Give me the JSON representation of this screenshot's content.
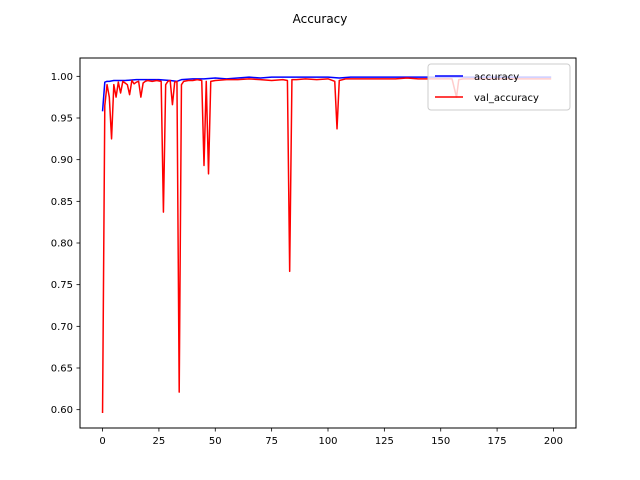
{
  "chart_data": {
    "type": "line",
    "title": "Accuracy",
    "xlabel": "",
    "ylabel": "",
    "xlim": [
      -10,
      210
    ],
    "ylim": [
      0.578,
      1.022
    ],
    "xticks": [
      0,
      25,
      50,
      75,
      100,
      125,
      150,
      175,
      200
    ],
    "yticks": [
      0.6,
      0.65,
      0.7,
      0.75,
      0.8,
      0.85,
      0.9,
      0.95,
      1.0
    ],
    "xtick_labels": [
      "0",
      "25",
      "50",
      "75",
      "100",
      "125",
      "150",
      "175",
      "200"
    ],
    "ytick_labels": [
      "0.60",
      "0.65",
      "0.70",
      "0.75",
      "0.80",
      "0.85",
      "0.90",
      "0.95",
      "1.00"
    ],
    "grid": false,
    "legend": "top-right",
    "series": [
      {
        "name": "accuracy",
        "color": "#0000ff",
        "points": [
          [
            0,
            0.958
          ],
          [
            1,
            0.993
          ],
          [
            2,
            0.994
          ],
          [
            3,
            0.994
          ],
          [
            5,
            0.995
          ],
          [
            10,
            0.995
          ],
          [
            15,
            0.996
          ],
          [
            20,
            0.996
          ],
          [
            25,
            0.996
          ],
          [
            30,
            0.995
          ],
          [
            33,
            0.994
          ],
          [
            35,
            0.996
          ],
          [
            40,
            0.997
          ],
          [
            45,
            0.997
          ],
          [
            50,
            0.998
          ],
          [
            55,
            0.997
          ],
          [
            60,
            0.998
          ],
          [
            65,
            0.999
          ],
          [
            70,
            0.998
          ],
          [
            75,
            0.999
          ],
          [
            80,
            0.999
          ],
          [
            85,
            0.999
          ],
          [
            90,
            0.999
          ],
          [
            95,
            0.999
          ],
          [
            100,
            0.999
          ],
          [
            105,
            0.998
          ],
          [
            110,
            0.999
          ],
          [
            115,
            0.999
          ],
          [
            120,
            0.999
          ],
          [
            125,
            0.999
          ],
          [
            130,
            0.999
          ],
          [
            135,
            0.999
          ],
          [
            140,
            0.999
          ],
          [
            145,
            0.999
          ],
          [
            150,
            0.999
          ],
          [
            155,
            0.999
          ],
          [
            160,
            0.999
          ],
          [
            170,
            0.999
          ],
          [
            180,
            0.999
          ],
          [
            190,
            0.999
          ],
          [
            199,
            0.999
          ]
        ]
      },
      {
        "name": "val_accuracy",
        "color": "#ff0000",
        "points": [
          [
            0,
            0.596
          ],
          [
            1,
            0.965
          ],
          [
            2,
            0.99
          ],
          [
            3,
            0.975
          ],
          [
            4,
            0.925
          ],
          [
            5,
            0.99
          ],
          [
            6,
            0.975
          ],
          [
            7,
            0.993
          ],
          [
            8,
            0.98
          ],
          [
            9,
            0.994
          ],
          [
            10,
            0.992
          ],
          [
            11,
            0.99
          ],
          [
            12,
            0.978
          ],
          [
            13,
            0.995
          ],
          [
            14,
            0.991
          ],
          [
            15,
            0.993
          ],
          [
            16,
            0.994
          ],
          [
            17,
            0.975
          ],
          [
            18,
            0.992
          ],
          [
            19,
            0.994
          ],
          [
            20,
            0.995
          ],
          [
            22,
            0.994
          ],
          [
            24,
            0.995
          ],
          [
            26,
            0.994
          ],
          [
            27,
            0.837
          ],
          [
            28,
            0.99
          ],
          [
            29,
            0.994
          ],
          [
            30,
            0.995
          ],
          [
            31,
            0.966
          ],
          [
            32,
            0.993
          ],
          [
            33,
            0.994
          ],
          [
            34,
            0.621
          ],
          [
            35,
            0.99
          ],
          [
            36,
            0.994
          ],
          [
            38,
            0.995
          ],
          [
            40,
            0.995
          ],
          [
            42,
            0.996
          ],
          [
            44,
            0.995
          ],
          [
            45,
            0.893
          ],
          [
            46,
            0.994
          ],
          [
            47,
            0.883
          ],
          [
            48,
            0.994
          ],
          [
            50,
            0.995
          ],
          [
            55,
            0.996
          ],
          [
            60,
            0.996
          ],
          [
            65,
            0.997
          ],
          [
            70,
            0.996
          ],
          [
            75,
            0.995
          ],
          [
            80,
            0.996
          ],
          [
            82,
            0.995
          ],
          [
            83,
            0.766
          ],
          [
            84,
            0.996
          ],
          [
            86,
            0.996
          ],
          [
            90,
            0.997
          ],
          [
            95,
            0.996
          ],
          [
            100,
            0.997
          ],
          [
            103,
            0.994
          ],
          [
            104,
            0.937
          ],
          [
            105,
            0.995
          ],
          [
            108,
            0.997
          ],
          [
            110,
            0.997
          ],
          [
            115,
            0.997
          ],
          [
            120,
            0.997
          ],
          [
            125,
            0.997
          ],
          [
            130,
            0.997
          ],
          [
            135,
            0.998
          ],
          [
            140,
            0.997
          ],
          [
            145,
            0.997
          ],
          [
            150,
            0.997
          ],
          [
            155,
            0.997
          ],
          [
            157,
            0.975
          ],
          [
            158,
            0.996
          ],
          [
            160,
            0.997
          ],
          [
            170,
            0.997
          ],
          [
            180,
            0.997
          ],
          [
            190,
            0.997
          ],
          [
            199,
            0.997
          ]
        ]
      }
    ]
  }
}
